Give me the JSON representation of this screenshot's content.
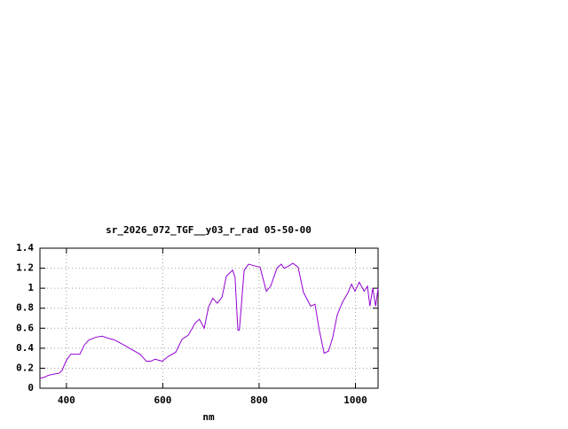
{
  "chart_data": {
    "type": "line",
    "title": "sr_2026_072_TGF__y03_r_rad 05-50-00",
    "x_label": "nm",
    "xlim": [
      345,
      1047
    ],
    "xticks": [
      400,
      600,
      800,
      1000
    ],
    "ylim": [
      0,
      1.4
    ],
    "yticks": [
      0,
      0.2,
      0.4,
      0.6,
      0.8,
      1,
      1.2,
      1.4
    ],
    "grid": true,
    "x": [
      345,
      354,
      363,
      372,
      385,
      391,
      400,
      409,
      428,
      437,
      446,
      461,
      474,
      487,
      501,
      520,
      538,
      553,
      566,
      575,
      584,
      599,
      612,
      627,
      640,
      653,
      667,
      676,
      686,
      695,
      704,
      713,
      723,
      732,
      745,
      750,
      756,
      759,
      769,
      778,
      793,
      802,
      815,
      824,
      837,
      846,
      852,
      861,
      870,
      881,
      892,
      907,
      916,
      925,
      935,
      944,
      953,
      962,
      973,
      984,
      992,
      999,
      1008,
      1018,
      1025,
      1030,
      1036,
      1042,
      1047
    ],
    "series": [
      {
        "color": "#9400d3",
        "values": [
          0.1,
          0.11,
          0.13,
          0.14,
          0.15,
          0.18,
          0.28,
          0.34,
          0.34,
          0.43,
          0.48,
          0.51,
          0.52,
          0.5,
          0.48,
          0.43,
          0.38,
          0.34,
          0.27,
          0.27,
          0.29,
          0.27,
          0.32,
          0.36,
          0.49,
          0.53,
          0.65,
          0.69,
          0.6,
          0.81,
          0.9,
          0.85,
          0.91,
          1.12,
          1.18,
          1.11,
          0.58,
          0.58,
          1.18,
          1.24,
          1.22,
          1.21,
          0.97,
          1.02,
          1.2,
          1.24,
          1.2,
          1.22,
          1.25,
          1.21,
          0.96,
          0.82,
          0.84,
          0.58,
          0.35,
          0.37,
          0.51,
          0.73,
          0.86,
          0.95,
          1.04,
          0.97,
          1.06,
          0.97,
          1.02,
          0.82,
          1.0,
          0.82,
          1.0
        ]
      }
    ]
  }
}
